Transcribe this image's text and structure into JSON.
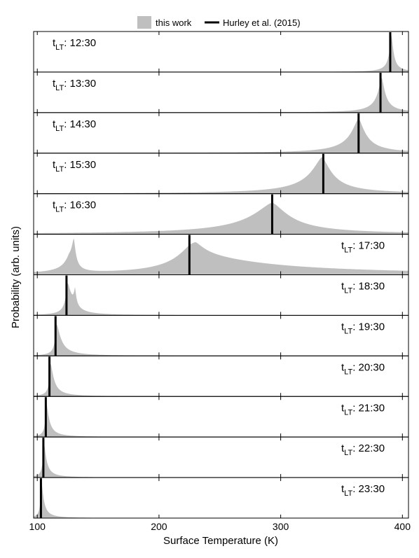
{
  "chart_data": {
    "type": "area",
    "xlabel": "Surface Temperature (K)",
    "ylabel": "Probability (arb. units)",
    "xlim": [
      97,
      405
    ],
    "xticks": [
      100,
      200,
      300,
      400
    ],
    "xtick_labels": [
      "100",
      "200",
      "300",
      "400"
    ],
    "legend": {
      "placement": "top-center",
      "entries": [
        {
          "label": "this work",
          "kind": "filled-area",
          "color": "#bfbfbf"
        },
        {
          "label": "Hurley et al. (2015)",
          "kind": "line",
          "color": "#000000"
        }
      ]
    },
    "panel_label_prefix": "t",
    "panel_label_subscript": "LT",
    "panels": [
      {
        "label": "12:30",
        "label_side": "left",
        "hurley_k": 390,
        "this_work": {
          "peaks": [
            {
              "center": 391,
              "width_left": 2,
              "width_right": 2,
              "height": 0.95
            }
          ]
        }
      },
      {
        "label": "13:30",
        "label_side": "left",
        "hurley_k": 382,
        "this_work": {
          "peaks": [
            {
              "center": 383,
              "width_left": 4,
              "width_right": 3.5,
              "height": 0.9
            }
          ]
        }
      },
      {
        "label": "14:30",
        "label_side": "left",
        "hurley_k": 364,
        "this_work": {
          "peaks": [
            {
              "center": 364,
              "width_left": 8,
              "width_right": 7,
              "height": 0.9
            }
          ]
        }
      },
      {
        "label": "15:30",
        "label_side": "left",
        "hurley_k": 335,
        "this_work": {
          "peaks": [
            {
              "center": 334,
              "width_left": 12,
              "width_right": 10,
              "height": 0.95
            }
          ]
        }
      },
      {
        "label": "16:30",
        "label_side": "left",
        "hurley_k": 293,
        "this_work": {
          "peaks": [
            {
              "center": 293,
              "width_left": 22,
              "width_right": 18,
              "height": 0.82
            }
          ]
        }
      },
      {
        "label": "17:30",
        "label_side": "right",
        "hurley_k": 225,
        "this_work": {
          "peaks": [
            {
              "center": 230,
              "width_left": 12,
              "width_right": 10,
              "height": 0.35
            },
            {
              "center": 226,
              "width_left": 18,
              "width_right": 70,
              "height": 0.5
            },
            {
              "center": 130,
              "width_left": 3,
              "width_right": 2,
              "height": 0.82
            },
            {
              "center": 126,
              "width_left": 6,
              "width_right": 3,
              "height": 0.18
            }
          ]
        }
      },
      {
        "label": "18:30",
        "label_side": "right",
        "hurley_k": 124,
        "this_work": {
          "peaks": [
            {
              "center": 125,
              "width_left": 2,
              "width_right": 4,
              "height": 0.8
            },
            {
              "center": 131,
              "width_left": 1.2,
              "width_right": 1.2,
              "height": 0.45
            }
          ]
        }
      },
      {
        "label": "19:30",
        "label_side": "right",
        "hurley_k": 115,
        "this_work": {
          "peaks": [
            {
              "center": 116,
              "width_left": 1.5,
              "width_right": 4,
              "height": 0.82
            }
          ]
        }
      },
      {
        "label": "20:30",
        "label_side": "right",
        "hurley_k": 110,
        "this_work": {
          "peaks": [
            {
              "center": 111,
              "width_left": 1.2,
              "width_right": 3,
              "height": 0.85
            }
          ]
        }
      },
      {
        "label": "21:30",
        "label_side": "right",
        "hurley_k": 107,
        "this_work": {
          "peaks": [
            {
              "center": 107.5,
              "width_left": 1,
              "width_right": 2.5,
              "height": 0.88
            }
          ]
        }
      },
      {
        "label": "22:30",
        "label_side": "right",
        "hurley_k": 105,
        "this_work": {
          "peaks": [
            {
              "center": 105.5,
              "width_left": 1,
              "width_right": 2.2,
              "height": 0.9
            }
          ]
        }
      },
      {
        "label": "23:30",
        "label_side": "right",
        "hurley_k": 103,
        "this_work": {
          "peaks": [
            {
              "center": 103.5,
              "width_left": 0.9,
              "width_right": 2,
              "height": 0.92
            }
          ]
        }
      }
    ]
  }
}
